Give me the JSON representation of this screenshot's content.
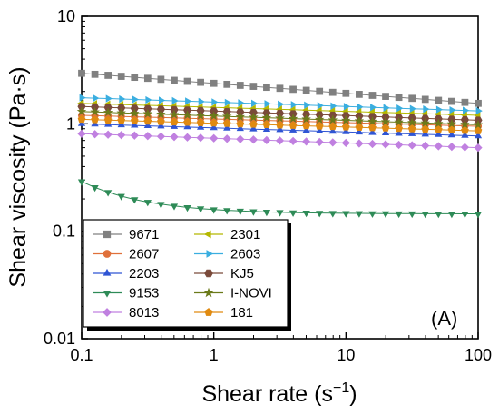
{
  "chart_data": {
    "type": "line",
    "xscale": "log",
    "yscale": "log",
    "xlim": [
      0.1,
      100
    ],
    "ylim": [
      0.01,
      10
    ],
    "xlabel": "Shear rate (s",
    "xlabel_sup": "−1",
    "xlabel_close": ")",
    "ylabel": "Shear viscosity (Pa·s)",
    "x_ticks": [
      0.1,
      1,
      10,
      100
    ],
    "x_tick_labels": [
      "0.1",
      "1",
      "10",
      "100"
    ],
    "y_ticks": [
      0.01,
      0.1,
      1,
      10
    ],
    "y_tick_labels": [
      "0.01",
      "0.1",
      "1",
      "10"
    ],
    "panel_label": "(A)",
    "legend_placement": "lower-left",
    "legend_layout": "two-column",
    "series": [
      {
        "name": "9671",
        "marker": "square",
        "color": "#808080",
        "x_start": 0.1,
        "x_end": 100,
        "y_start": 2.95,
        "y_end": 1.55
      },
      {
        "name": "2607",
        "marker": "circle",
        "color": "#e0703a",
        "x_start": 0.1,
        "x_end": 100,
        "y_start": 1.2,
        "y_end": 0.95
      },
      {
        "name": "2203",
        "marker": "triangle-up",
        "color": "#2f55d4",
        "x_start": 0.1,
        "x_end": 100,
        "y_start": 1.0,
        "y_end": 0.77
      },
      {
        "name": "9153",
        "marker": "triangle-down",
        "color": "#2e8b57",
        "x_start": 0.1,
        "x_end": 100,
        "y_start": 0.29,
        "y_end": 0.145
      },
      {
        "name": "8013",
        "marker": "diamond",
        "color": "#c080e0",
        "x_start": 0.1,
        "x_end": 100,
        "y_start": 0.81,
        "y_end": 0.6
      },
      {
        "name": "2301",
        "marker": "triangle-left",
        "color": "#b5b800",
        "x_start": 0.1,
        "x_end": 100,
        "y_start": 1.55,
        "y_end": 1.2
      },
      {
        "name": "2603",
        "marker": "triangle-right",
        "color": "#3aaee0",
        "x_start": 0.1,
        "x_end": 100,
        "y_start": 1.75,
        "y_end": 1.32
      },
      {
        "name": "KJ5",
        "marker": "hexagon",
        "color": "#7a4a3a",
        "x_start": 0.1,
        "x_end": 100,
        "y_start": 1.45,
        "y_end": 1.08
      },
      {
        "name": "I-NOVI",
        "marker": "star",
        "color": "#6b7a1a",
        "x_start": 0.1,
        "x_end": 100,
        "y_start": 1.3,
        "y_end": 0.98
      },
      {
        "name": "181",
        "marker": "pentagon",
        "color": "#e08a10",
        "x_start": 0.1,
        "x_end": 100,
        "y_start": 1.1,
        "y_end": 0.86
      }
    ]
  }
}
